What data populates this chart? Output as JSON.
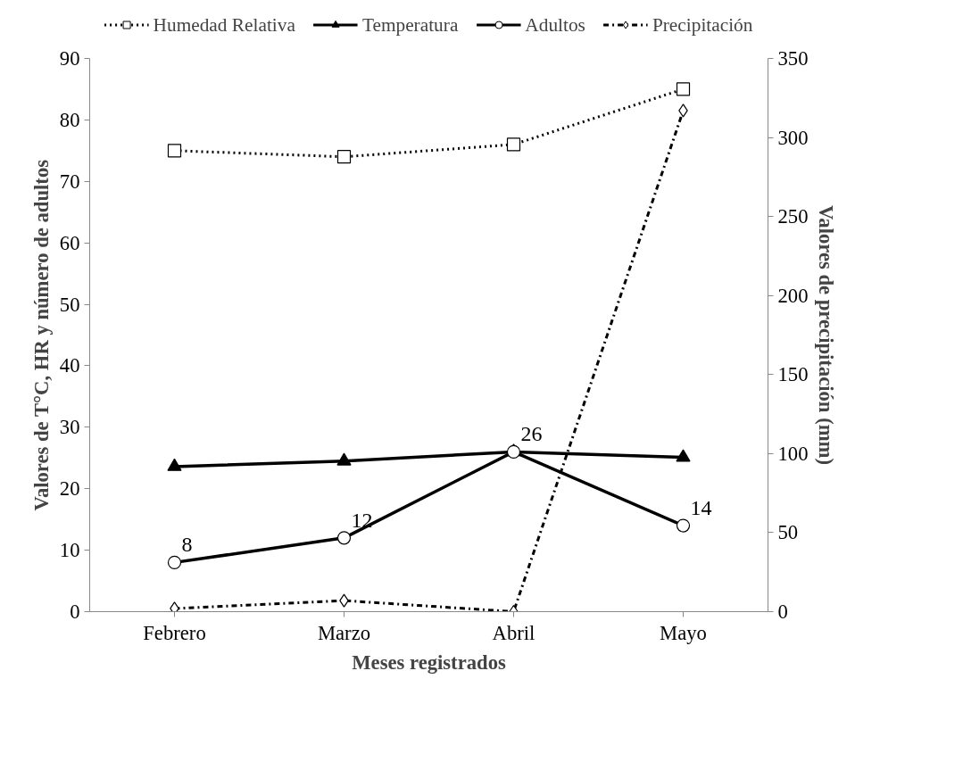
{
  "chart_data": {
    "type": "line",
    "xlabel": "Meses registrados",
    "ylabel": "Valores de T°C, HR y número de adultos",
    "y2label": "Valores de precipitación (mm)",
    "categories": [
      "Febrero",
      "Marzo",
      "Abril",
      "Mayo"
    ],
    "series": [
      {
        "name": "Humedad Relativa",
        "color": "#000000",
        "marker": "square",
        "line_style": "dotted",
        "values": [
          75,
          74,
          76,
          85
        ]
      },
      {
        "name": "Temperatura",
        "color": "#000000",
        "marker": "triangle",
        "line_style": "solid",
        "values": [
          23.6,
          24.5,
          26,
          25.1
        ]
      },
      {
        "name": "Adultos",
        "color": "#000000",
        "marker": "circle",
        "line_style": "solid",
        "values": [
          8,
          12,
          26,
          14
        ],
        "value_labels": [
          "8",
          "12",
          "26",
          "14"
        ]
      },
      {
        "name": "Precipitación",
        "color": "#000000",
        "marker": "diamond",
        "line_style": "dashdot",
        "axis": "y2",
        "values": [
          2,
          7,
          0,
          317
        ]
      }
    ],
    "ylim": [
      0,
      90
    ],
    "yticks": [
      0,
      10,
      20,
      30,
      40,
      50,
      60,
      70,
      80,
      90
    ],
    "y2lim": [
      0,
      350
    ],
    "y2ticks": [
      0,
      50,
      100,
      150,
      200,
      250,
      300,
      350
    ],
    "grid": false,
    "legend": "top"
  }
}
